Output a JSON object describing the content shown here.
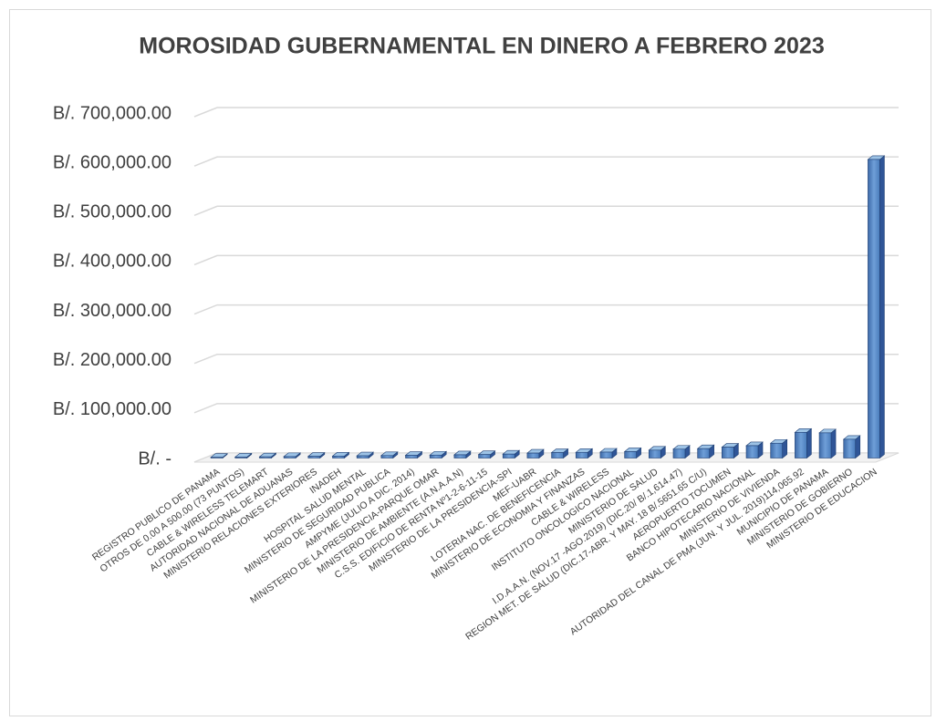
{
  "chart_data": {
    "type": "bar3d",
    "title": "MOROSIDAD GUBERNAMENTAL EN DINERO A FEBRERO 2023",
    "categories": [
      "REGISTRO PUBLICO DE PANAMA",
      "OTROS DE 0.00 A 500.00  (73 PUNTOS)",
      "CABLE & WIRELESS TELEMART",
      "AUTORIDAD NACIONAL DE ADUANAS",
      "MINISTERIO RELACIONES EXTERIORES",
      "INADEH",
      "HOSPITAL SALUD MENTAL",
      "MINISTERIO DE SEGURIDAD PUBLICA",
      "AMPYME    (JULIO A DIC. 2014)",
      "MINISTERIO DE LA PRESIDENCIA-PARQUE OMAR",
      "MINISTERIO DE AMBIENTE (A.N.A.A.N)",
      "C.S.S. EDIFICIO DE RENTA Nº1-2-6-11-15",
      "MINISTERIO DE LA PRESIDENCIA-SPI",
      "MEF-UABR",
      "LOTERIA NAC. DE BENEFICENCIA",
      "MINISTERIO DE ECONOMIA Y FINANZAS",
      "CABLE & WIRELESS",
      "INSTITUTO ONCOLOGICO NACIONAL",
      "MINISTERIO DE SALUD",
      "I.D.A.A.N. (NOV.17 -AGO.2019)  (DIC.20/ B/.1,614.47)",
      "REGION MET. DE SALUD (DIC.17-ABR. Y MAY. 18 B/.5651.65 C/U)",
      "AEROPUERTO  TOCUMEN",
      "BANCO HIPOTECARIO NACIONAL",
      "MINISTERIO DE VIVIENDA",
      "AUTORIDAD DEL CANAL DE PMA  (JUN. Y JUL. 2019)114,065.92",
      "MUNICIPIO DE PANAMA",
      "MINISTERIO DE GOBIERNO",
      "MINISTERIO DE EDUCACION"
    ],
    "values": [
      1500,
      2000,
      2500,
      3000,
      3500,
      4000,
      4500,
      5000,
      5500,
      6000,
      6500,
      7000,
      8000,
      10000,
      11000,
      11500,
      12000,
      13000,
      16000,
      18000,
      19000,
      22000,
      25000,
      30000,
      52000,
      51000,
      38000,
      605000
    ],
    "color": "#4f81bd",
    "ylim": [
      0,
      700000
    ],
    "yticks": [
      {
        "value": 0,
        "label": "B/. -"
      },
      {
        "value": 100000,
        "label": "B/. 100,000.00"
      },
      {
        "value": 200000,
        "label": "B/. 200,000.00"
      },
      {
        "value": 300000,
        "label": "B/. 300,000.00"
      },
      {
        "value": 400000,
        "label": "B/. 400,000.00"
      },
      {
        "value": 500000,
        "label": "B/. 500,000.00"
      },
      {
        "value": 600000,
        "label": "B/. 600,000.00"
      },
      {
        "value": 700000,
        "label": "B/. 700,000.00"
      }
    ],
    "grid": true
  }
}
